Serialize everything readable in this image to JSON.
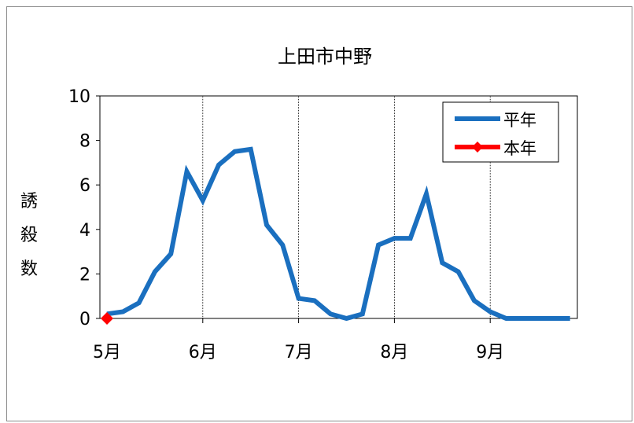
{
  "chart_data": {
    "type": "line",
    "title": "上田市中野",
    "ylabel": "誘殺数",
    "xlabel": "",
    "ylim": [
      0,
      10
    ],
    "yticks": [
      0,
      2,
      4,
      6,
      8,
      10
    ],
    "xticks": [
      "5月",
      "6月",
      "7月",
      "8月",
      "9月"
    ],
    "grid": "vertical lines at month boundaries",
    "legend": "top-right",
    "x_unit": "half-month period index (0 = start of 5月, 6 per month)",
    "series": [
      {
        "name": "平年",
        "color": "#1a6fbf",
        "marker": "none",
        "x": [
          0,
          1,
          2,
          3,
          4,
          5,
          6,
          7,
          8,
          9,
          10,
          11,
          12,
          13,
          14,
          15,
          16,
          17,
          18,
          19,
          20,
          21,
          22,
          23,
          24,
          25,
          26,
          27,
          28,
          29
        ],
        "values": [
          0.2,
          0.3,
          0.7,
          2.1,
          2.9,
          6.6,
          5.3,
          6.9,
          7.5,
          7.6,
          4.2,
          3.3,
          0.9,
          0.8,
          0.2,
          0.0,
          0.2,
          3.3,
          3.6,
          3.6,
          5.6,
          2.5,
          2.1,
          0.8,
          0.3,
          0.0,
          0.0,
          0.0,
          0.0,
          0.0
        ]
      },
      {
        "name": "本年",
        "color": "#ff0000",
        "marker": "diamond",
        "x": [
          0
        ],
        "values": [
          0
        ]
      }
    ]
  }
}
